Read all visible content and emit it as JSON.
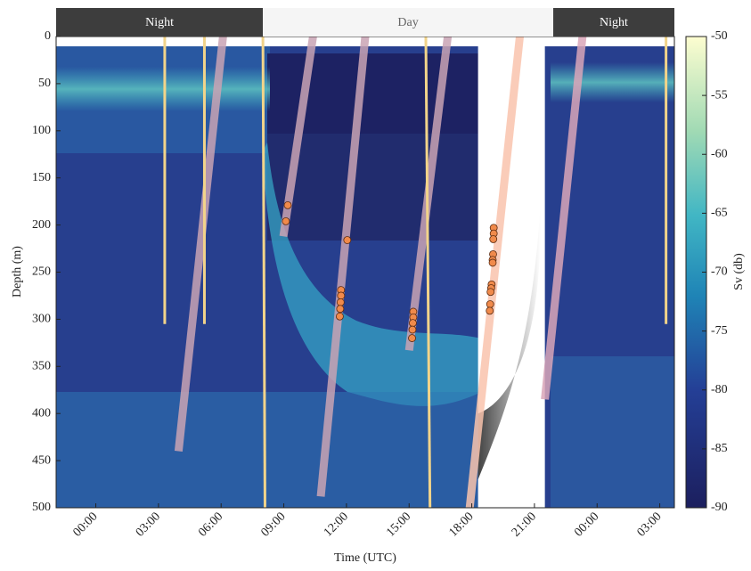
{
  "chart_data": {
    "type": "echogram",
    "xlabel": "Time (UTC)",
    "ylabel": "Depth (m)",
    "xlim": [
      -1.9,
      27.7
    ],
    "xticks": [
      {
        "value": 0,
        "label": "00:00"
      },
      {
        "value": 3,
        "label": "03:00"
      },
      {
        "value": 6,
        "label": "06:00"
      },
      {
        "value": 9,
        "label": "09:00"
      },
      {
        "value": 12,
        "label": "12:00"
      },
      {
        "value": 15,
        "label": "15:00"
      },
      {
        "value": 18,
        "label": "18:00"
      },
      {
        "value": 21,
        "label": "21:00"
      },
      {
        "value": 24,
        "label": "00:00"
      },
      {
        "value": 27,
        "label": "03:00"
      }
    ],
    "ylim": [
      0,
      500
    ],
    "y_inverted": true,
    "yticks": [
      0,
      50,
      100,
      150,
      200,
      250,
      300,
      350,
      400,
      450,
      500
    ],
    "bands": [
      {
        "label": "Night",
        "x": [
          -1.9,
          8.0
        ],
        "color": "#3d3d3d"
      },
      {
        "label": "Day",
        "x": [
          8.0,
          21.9
        ],
        "color": "#f5f5f5"
      },
      {
        "label": "Night",
        "x": [
          21.9,
          27.7
        ],
        "color": "#3d3d3d"
      }
    ],
    "gap": [
      18.3,
      21.5
    ],
    "colorbar_label": "Sv (db)",
    "clim": [
      -90,
      -50
    ],
    "cticks": [
      -90,
      -85,
      -80,
      -75,
      -70,
      -65,
      -60,
      -55,
      -50
    ],
    "tracks": [
      {
        "color": "#c9a3b4",
        "x": [
          3.96,
          6.09
        ],
        "y": [
          440,
          0
        ]
      },
      {
        "color": "#c9a3b4",
        "x": [
          8.98,
          10.4
        ],
        "y": [
          212,
          0
        ]
      },
      {
        "color": "#c9a3b4",
        "x": [
          10.77,
          12.9
        ],
        "y": [
          488,
          0
        ]
      },
      {
        "color": "#c9a3b4",
        "x": [
          15.0,
          16.85
        ],
        "y": [
          333,
          0
        ]
      },
      {
        "color": "#f9c3ad",
        "x": [
          17.9,
          20.3
        ],
        "y": [
          500,
          0
        ]
      },
      {
        "color": "#d9a6b8",
        "x": [
          21.5,
          23.3
        ],
        "y": [
          385,
          0
        ]
      }
    ],
    "casts": [
      {
        "color": "#f2d48a",
        "x": [
          3.3,
          3.3
        ],
        "y": [
          0,
          305
        ]
      },
      {
        "color": "#f2d48a",
        "x": [
          5.2,
          5.2
        ],
        "y": [
          0,
          305
        ]
      },
      {
        "color": "#f2d48a",
        "x": [
          8.0,
          8.1
        ],
        "y": [
          0,
          500
        ]
      },
      {
        "color": "#f2d48a",
        "x": [
          15.8,
          16.0
        ],
        "y": [
          0,
          500
        ]
      },
      {
        "color": "#f2d48a",
        "x": [
          27.3,
          27.3
        ],
        "y": [
          0,
          305
        ]
      }
    ],
    "points": {
      "color": "#f08a4b",
      "x": [
        9.19,
        9.1,
        12.04,
        11.74,
        11.74,
        11.72,
        11.7,
        11.68,
        15.2,
        15.2,
        15.18,
        15.16,
        15.14,
        19.05,
        19.05,
        19.03,
        19.02,
        19.0,
        19.0,
        18.95,
        18.93,
        18.9,
        18.88,
        18.86
      ],
      "y": [
        179,
        196,
        216,
        269,
        275,
        282,
        289,
        297,
        292,
        298,
        304,
        311,
        320,
        203,
        209,
        215,
        231,
        237,
        240,
        263,
        267,
        271,
        284,
        291
      ]
    }
  }
}
